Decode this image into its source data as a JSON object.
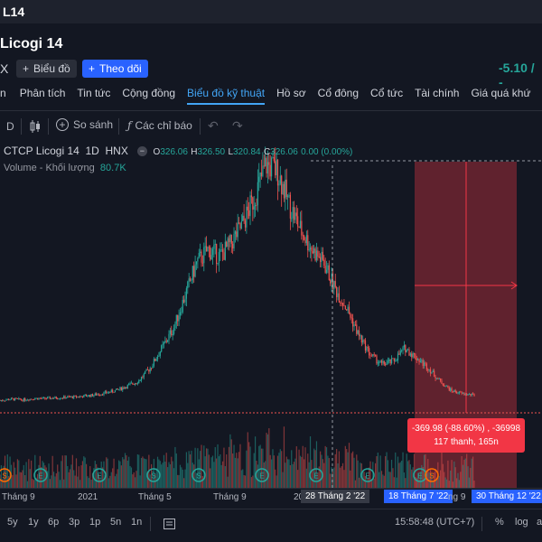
{
  "header": {
    "ticker": "L14",
    "company": "Licogi 14",
    "exchange_letter": "X",
    "chart_button": "Biểu đồ",
    "follow_button": "Theo dõi",
    "price_change": "-5.10 / -"
  },
  "nav": {
    "items": [
      {
        "label": "n"
      },
      {
        "label": "Phân tích"
      },
      {
        "label": "Tin tức"
      },
      {
        "label": "Cộng đồng"
      },
      {
        "label": "Biểu đồ kỹ thuật",
        "active": true
      },
      {
        "label": "Hồ sơ"
      },
      {
        "label": "Cổ đông"
      },
      {
        "label": "Cổ tức"
      },
      {
        "label": "Tài chính"
      },
      {
        "label": "Giá quá khứ"
      }
    ]
  },
  "toolbar": {
    "interval": "D",
    "compare": "So sánh",
    "indicators": "Các chỉ báo"
  },
  "legend": {
    "symbol": "CTCP Licogi 14",
    "interval": "1D",
    "exchange": "HNX",
    "o_label": "O",
    "o_value": "326.06",
    "h_label": "H",
    "h_value": "326.50",
    "l_label": "L",
    "l_value": "320.84",
    "c_label": "C",
    "c_value": "326.06",
    "change": "0.00 (0.00%)",
    "volume_label": "Volume - Khối lượng",
    "volume_value": "80.7K"
  },
  "measure": {
    "line1": "-369.98 (-88.60%) , -36998",
    "line2": "117 thanh, 165n"
  },
  "xaxis": {
    "labels": [
      "Tháng 9",
      "2021",
      "Tháng 5",
      "Tháng 9",
      "20",
      "ng 9"
    ],
    "crosshair_date": "28 Tháng 2 '22",
    "range_start": "18 Tháng 7 '22",
    "range_end": "30 Tháng 12 '22"
  },
  "bottombar": {
    "ranges": [
      "5y",
      "1y",
      "6p",
      "3p",
      "1p",
      "5n",
      "1n"
    ],
    "time": "15:58:48 (UTC+7)",
    "percent": "%",
    "log": "log",
    "auto": "a"
  },
  "colors": {
    "up": "#26a69a",
    "down": "#ef5350",
    "accent": "#2962ff",
    "measure_fill": "#f23645"
  },
  "chart_data": {
    "type": "candlestick",
    "interval": "1D",
    "trend_closes": [
      30,
      32,
      31,
      33,
      33,
      34,
      35,
      36,
      38,
      41,
      45,
      52,
      60,
      80,
      110,
      140,
      190,
      240,
      260,
      250,
      270,
      300,
      340,
      390,
      380,
      330,
      290,
      260,
      240,
      200,
      170,
      130,
      100,
      85,
      90,
      110,
      95,
      80,
      60,
      45,
      40,
      38
    ]
  }
}
